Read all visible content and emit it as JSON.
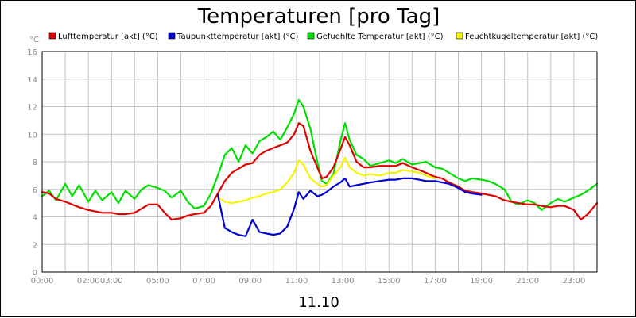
{
  "chart_data": {
    "type": "line",
    "title": "Temperaturen [pro Tag]",
    "ylabel": "°C",
    "xlabel": "11.10",
    "ylim": [
      0,
      16
    ],
    "xlim": [
      0,
      24
    ],
    "y_ticks": [
      "0",
      "2",
      "4",
      "6",
      "8",
      "10",
      "12",
      "14",
      "16"
    ],
    "x_ticks": [
      {
        "label": "00:00",
        "h": 0
      },
      {
        "label": "02:00",
        "h": 2
      },
      {
        "label": "03:00",
        "h": 3
      },
      {
        "label": "05:00",
        "h": 5
      },
      {
        "label": "07:00",
        "h": 7
      },
      {
        "label": "09:00",
        "h": 9
      },
      {
        "label": "11:00",
        "h": 11
      },
      {
        "label": "13:00",
        "h": 13
      },
      {
        "label": "15:00",
        "h": 15
      },
      {
        "label": "17:00",
        "h": 17
      },
      {
        "label": "19:00",
        "h": 19
      },
      {
        "label": "21:00",
        "h": 21
      },
      {
        "label": "23:00",
        "h": 23
      }
    ],
    "grid": true,
    "legend_position": "top",
    "series": [
      {
        "name": "Gefuehlte Temperatur [akt] (°C)",
        "color": "#00e000",
        "x": [
          0,
          0.3,
          0.6,
          1,
          1.3,
          1.6,
          2,
          2.3,
          2.6,
          3,
          3.3,
          3.6,
          4,
          4.3,
          4.6,
          5,
          5.3,
          5.6,
          6,
          6.3,
          6.6,
          7,
          7.3,
          7.6,
          7.9,
          8.2,
          8.5,
          8.8,
          9.1,
          9.4,
          9.7,
          10,
          10.3,
          10.6,
          10.9,
          11.1,
          11.3,
          11.6,
          11.9,
          12.1,
          12.3,
          12.6,
          12.9,
          13.1,
          13.3,
          13.6,
          13.9,
          14.2,
          14.6,
          15,
          15.3,
          15.6,
          16,
          16.3,
          16.6,
          17,
          17.3,
          17.6,
          18,
          18.3,
          18.6,
          19,
          19.3,
          19.6,
          20,
          20.3,
          20.6,
          21,
          21.3,
          21.6,
          22,
          22.3,
          22.6,
          23,
          23.3,
          23.6,
          24
        ],
        "y": [
          5.5,
          5.9,
          5.2,
          6.4,
          5.5,
          6.3,
          5.1,
          5.9,
          5.2,
          5.8,
          5.0,
          5.9,
          5.3,
          6.0,
          6.3,
          6.1,
          5.9,
          5.4,
          5.9,
          5.1,
          4.6,
          4.8,
          5.7,
          7.0,
          8.5,
          9.0,
          8.0,
          9.2,
          8.6,
          9.5,
          9.8,
          10.2,
          9.6,
          10.5,
          11.5,
          12.5,
          12.0,
          10.4,
          8.0,
          6.6,
          6.4,
          7.1,
          9.5,
          10.8,
          9.6,
          8.5,
          8.2,
          7.7,
          7.9,
          8.1,
          7.9,
          8.2,
          7.8,
          7.9,
          8.0,
          7.6,
          7.5,
          7.2,
          6.8,
          6.6,
          6.8,
          6.7,
          6.6,
          6.4,
          6.0,
          5.1,
          4.9,
          5.2,
          5.0,
          4.5,
          5.0,
          5.3,
          5.1,
          5.4,
          5.6,
          5.9,
          6.4
        ]
      },
      {
        "name": "Lufttemperatur [akt] (°C)",
        "color": "#e00000",
        "x": [
          0,
          0.3,
          0.6,
          1,
          1.3,
          1.6,
          2,
          2.3,
          2.6,
          3,
          3.3,
          3.6,
          4,
          4.3,
          4.6,
          5,
          5.3,
          5.6,
          6,
          6.3,
          6.6,
          7,
          7.3,
          7.6,
          7.9,
          8.2,
          8.5,
          8.8,
          9.1,
          9.4,
          9.7,
          10,
          10.3,
          10.6,
          10.9,
          11.1,
          11.3,
          11.6,
          11.9,
          12.1,
          12.3,
          12.6,
          12.9,
          13.1,
          13.3,
          13.6,
          13.9,
          14.2,
          14.6,
          15,
          15.3,
          15.6,
          16,
          16.3,
          16.6,
          17,
          17.3,
          17.6,
          18,
          18.3,
          18.6,
          19,
          19.3,
          19.6,
          20,
          20.3,
          20.6,
          21,
          21.3,
          21.6,
          22,
          22.3,
          22.6,
          23,
          23.3,
          23.6,
          24
        ],
        "y": [
          5.8,
          5.7,
          5.3,
          5.1,
          4.9,
          4.7,
          4.5,
          4.4,
          4.3,
          4.3,
          4.2,
          4.2,
          4.3,
          4.6,
          4.9,
          4.9,
          4.3,
          3.8,
          3.9,
          4.1,
          4.2,
          4.3,
          4.8,
          5.7,
          6.6,
          7.2,
          7.5,
          7.8,
          7.9,
          8.5,
          8.8,
          9.0,
          9.2,
          9.4,
          10.0,
          10.8,
          10.6,
          8.8,
          7.6,
          6.8,
          6.9,
          7.6,
          8.9,
          9.8,
          9.2,
          8.0,
          7.6,
          7.6,
          7.7,
          7.7,
          7.7,
          7.9,
          7.6,
          7.4,
          7.2,
          6.9,
          6.8,
          6.5,
          6.2,
          5.9,
          5.8,
          5.7,
          5.6,
          5.5,
          5.2,
          5.1,
          5.0,
          4.9,
          4.9,
          4.8,
          4.7,
          4.8,
          4.8,
          4.5,
          3.8,
          4.2,
          5.0
        ]
      },
      {
        "name": "Feuchtkugeltemperatur [akt] (°C)",
        "color": "#f5f500",
        "x": [
          7.6,
          7.9,
          8.2,
          8.5,
          8.8,
          9.1,
          9.4,
          9.7,
          10,
          10.3,
          10.6,
          10.9,
          11.1,
          11.3,
          11.6,
          11.9,
          12.1,
          12.3,
          12.6,
          12.9,
          13.1,
          13.3,
          13.6,
          13.9,
          14.2,
          14.6,
          15,
          15.3,
          15.6,
          16,
          16.3,
          16.6,
          17
        ],
        "y": [
          5.4,
          5.1,
          5.0,
          5.1,
          5.2,
          5.4,
          5.5,
          5.7,
          5.8,
          6.0,
          6.5,
          7.2,
          8.1,
          7.8,
          6.8,
          6.4,
          6.2,
          6.3,
          7.0,
          7.6,
          8.3,
          7.6,
          7.2,
          7.0,
          7.1,
          7.0,
          7.2,
          7.2,
          7.4,
          7.3,
          7.2,
          7.0,
          6.8
        ]
      },
      {
        "name": "Taupunkttemperatur [akt] (°C)",
        "color": "#0000d0",
        "x": [
          7.6,
          7.9,
          8.2,
          8.5,
          8.8,
          9.1,
          9.4,
          9.7,
          10,
          10.3,
          10.6,
          10.9,
          11.1,
          11.3,
          11.6,
          11.9,
          12.1,
          12.3,
          12.6,
          12.9,
          13.1,
          13.3,
          13.6,
          13.9,
          14.2,
          14.6,
          15,
          15.3,
          15.6,
          16,
          16.3,
          16.6,
          17,
          17.3,
          17.6,
          18,
          18.3,
          18.6,
          19
        ],
        "y": [
          5.6,
          3.2,
          2.9,
          2.7,
          2.6,
          3.8,
          2.9,
          2.8,
          2.7,
          2.8,
          3.3,
          4.6,
          5.8,
          5.3,
          5.9,
          5.5,
          5.6,
          5.8,
          6.2,
          6.5,
          6.8,
          6.2,
          6.3,
          6.4,
          6.5,
          6.6,
          6.7,
          6.7,
          6.8,
          6.8,
          6.7,
          6.6,
          6.6,
          6.5,
          6.4,
          6.1,
          5.8,
          5.7,
          5.6
        ]
      }
    ],
    "legend_order": [
      1,
      3,
      0,
      2
    ]
  }
}
